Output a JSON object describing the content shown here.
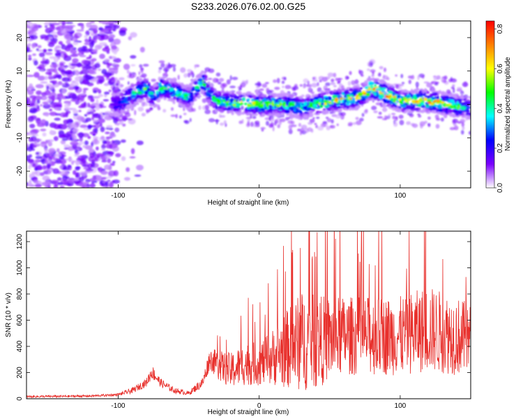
{
  "title": "S233.2026.076.02.00.G25",
  "chart_data": [
    {
      "type": "heatmap",
      "xlabel": "Height of straight line (km)",
      "ylabel": "Frequency (Hz)",
      "xlim": [
        -165,
        150
      ],
      "ylim": [
        -25,
        25
      ],
      "xticks": [
        -100,
        0,
        100
      ],
      "yticks": [
        -20,
        -10,
        0,
        10,
        20
      ],
      "colorbar": {
        "label": "Normalized spectral amplitude",
        "range": [
          0,
          0.84
        ],
        "ticks": [
          0.0,
          0.2,
          0.4,
          0.6,
          0.8
        ],
        "colors": [
          "#ffffff",
          "#7a00ff",
          "#0000ff",
          "#00ffff",
          "#00ff00",
          "#ffff00",
          "#ff8000",
          "#ff0000"
        ]
      },
      "ridge": {
        "x": [
          -100,
          -90,
          -80,
          -75,
          -70,
          -60,
          -50,
          -40,
          -35,
          -30,
          -20,
          0,
          20,
          30,
          50,
          70,
          80,
          90,
          100,
          120,
          140,
          150
        ],
        "y": [
          0,
          3,
          5,
          2,
          5,
          4,
          2,
          7,
          3,
          1,
          0.5,
          0,
          0,
          -1,
          1,
          2,
          5,
          3,
          1,
          1,
          -0.5,
          -1
        ],
        "peak": [
          0.3,
          0.45,
          0.5,
          0.4,
          0.5,
          0.5,
          0.45,
          0.5,
          0.4,
          0.5,
          0.55,
          0.6,
          0.55,
          0.45,
          0.6,
          0.7,
          0.8,
          0.75,
          0.6,
          0.7,
          0.55,
          0.4
        ]
      }
    },
    {
      "type": "line",
      "xlabel": "Height of straight line (km)",
      "ylabel": "SNR (10 * v/v)",
      "xlim": [
        -165,
        150
      ],
      "ylim": [
        0,
        1280
      ],
      "xticks": [
        -100,
        0,
        100
      ],
      "yticks": [
        0,
        200,
        400,
        600,
        800,
        1000,
        1200
      ],
      "color": "#e8302c",
      "envelope": {
        "x": [
          -165,
          -120,
          -100,
          -90,
          -80,
          -76,
          -70,
          -60,
          -50,
          -40,
          -35,
          -30,
          -20,
          -10,
          0,
          10,
          20,
          30,
          40,
          60,
          80,
          100,
          120,
          140,
          150
        ],
        "base": [
          15,
          20,
          30,
          60,
          120,
          200,
          120,
          60,
          40,
          120,
          300,
          250,
          200,
          250,
          250,
          300,
          350,
          400,
          400,
          450,
          450,
          450,
          500,
          450,
          420
        ],
        "spread": [
          15,
          15,
          20,
          40,
          60,
          100,
          60,
          40,
          30,
          80,
          150,
          200,
          250,
          300,
          300,
          400,
          550,
          700,
          650,
          550,
          550,
          550,
          600,
          550,
          500
        ]
      }
    }
  ]
}
